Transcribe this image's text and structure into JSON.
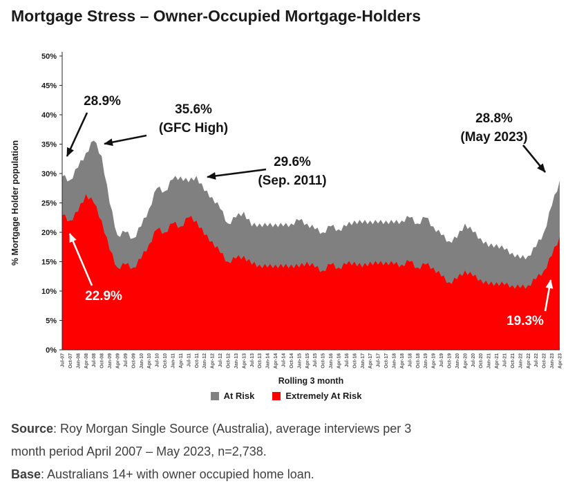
{
  "page": {
    "title": "Mortgage Stress – Owner-Occupied Mortgage-Holders"
  },
  "annotations": {
    "peak_2007": {
      "value": "28.9%"
    },
    "gfc": {
      "value": "35.6%",
      "caption": "(GFC High)"
    },
    "sep_2011": {
      "value": "29.6%",
      "caption": "(Sep. 2011)"
    },
    "may_2023": {
      "value": "28.8%",
      "caption": "(May 2023)"
    },
    "extremely_2007": {
      "value": "22.9%"
    },
    "extremely_2023": {
      "value": "19.3%"
    }
  },
  "source": {
    "label": "Source",
    "line1": ": Roy Morgan Single Source (Australia), average interviews per 3",
    "line2": "month period April 2007 – May 2023, n=2,738.",
    "base_label": "Base",
    "base_line": ": Australians 14+ with owner occupied home loan."
  },
  "chart_data": {
    "type": "area",
    "title": "Mortgage Stress – Owner-Occupied Mortgage-Holders",
    "xlabel": "Rolling 3 month",
    "ylabel": "% Mortgage Holder population",
    "ylim": [
      0,
      50
    ],
    "ytick_step": 5,
    "grid": false,
    "legend_position": "bottom",
    "categories": [
      "Jul-07",
      "Oct-07",
      "Jan-08",
      "Apr-08",
      "Jul-08",
      "Oct-08",
      "Jan-09",
      "Apr-09",
      "Jul-09",
      "Oct-09",
      "Jan-10",
      "Apr-10",
      "Jul-10",
      "Oct-10",
      "Jan-11",
      "Apr-11",
      "Jul-11",
      "Oct-11",
      "Jan-12",
      "Apr-12",
      "Jul-12",
      "Oct-12",
      "Jan-13",
      "Apr-13",
      "Jul-13",
      "Oct-13",
      "Jan-14",
      "Apr-14",
      "Jul-14",
      "Oct-14",
      "Jan-15",
      "Apr-15",
      "Jul-15",
      "Oct-15",
      "Jan-16",
      "Apr-16",
      "Jul-16",
      "Oct-16",
      "Jan-17",
      "Apr-17",
      "Jul-17",
      "Oct-17",
      "Jan-18",
      "Apr-18",
      "Jul-18",
      "Oct-18",
      "Jan-19",
      "Apr-19",
      "Jul-19",
      "Oct-19",
      "Jan-20",
      "Apr-20",
      "Jul-20",
      "Oct-20",
      "Jan-21",
      "Apr-21",
      "Jul-21",
      "Oct-21",
      "Jan-22",
      "Apr-22",
      "Jul-22",
      "Oct-22",
      "Jan-23",
      "Apr-23"
    ],
    "series": [
      {
        "name": "At Risk",
        "color": "#808080",
        "values": [
          29.5,
          28.9,
          31,
          33.5,
          35.6,
          33,
          25,
          19.5,
          20,
          19,
          21,
          24,
          27.5,
          27,
          29,
          29.5,
          28.5,
          29.6,
          27,
          26,
          24,
          21.5,
          22.5,
          23.5,
          21,
          21.5,
          21,
          21.5,
          21,
          21.5,
          22,
          21.5,
          20.5,
          20,
          21,
          20.5,
          21,
          22,
          21.5,
          22,
          21.5,
          22,
          21.5,
          22,
          22.5,
          21.5,
          22.5,
          21,
          19.5,
          18.5,
          19,
          21.5,
          20,
          19,
          17.5,
          18,
          17,
          16.5,
          15.5,
          16,
          17.5,
          20,
          24.5,
          28.8
        ]
      },
      {
        "name": "Extremely At Risk",
        "color": "#ff0000",
        "values": [
          22.9,
          22,
          23.5,
          26.5,
          25,
          22,
          17,
          14,
          14.5,
          14,
          15.5,
          18,
          20.5,
          20,
          21.5,
          21,
          22.5,
          22,
          19.5,
          18.5,
          16.5,
          15,
          15.5,
          16,
          14.5,
          14.5,
          14,
          14.5,
          14,
          14.5,
          14,
          15,
          14,
          13.5,
          14.5,
          14,
          14.5,
          15,
          14,
          15,
          14.5,
          15,
          14.5,
          14.5,
          15,
          14,
          14.5,
          14,
          12.5,
          11.5,
          12,
          13.5,
          12.5,
          12,
          11,
          11.5,
          11,
          11,
          10.5,
          11,
          12,
          13.5,
          16,
          19.3
        ]
      }
    ],
    "callouts": [
      {
        "series": "At Risk",
        "label": "28.9%",
        "period": "Oct-07"
      },
      {
        "series": "At Risk",
        "label": "35.6% (GFC High)",
        "period": "Jul-08"
      },
      {
        "series": "At Risk",
        "label": "29.6% (Sep. 2011)",
        "period": "Oct-11"
      },
      {
        "series": "At Risk",
        "label": "28.8% (May 2023)",
        "period": "Apr-23"
      },
      {
        "series": "Extremely At Risk",
        "label": "22.9%",
        "period": "Jul-07"
      },
      {
        "series": "Extremely At Risk",
        "label": "19.3%",
        "period": "Apr-23"
      }
    ]
  }
}
